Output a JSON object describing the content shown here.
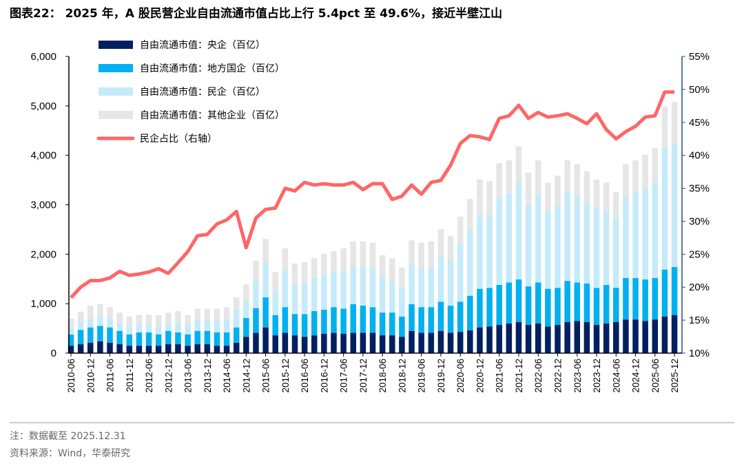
{
  "title": "图表22：  2025 年，A 股民营企业自由流通市值占比上行 5.4pct 至 49.6%，接近半壁江山",
  "footnote": "注：数据截至 2025.12.31",
  "source": "资料来源：Wind，华泰研究",
  "chart_data": {
    "type": "bar",
    "subtype": "stacked bar + line (secondary axis)",
    "categories": [
      "2010-06",
      "2010-09",
      "2010-12",
      "2011-03",
      "2011-06",
      "2011-09",
      "2011-12",
      "2012-03",
      "2012-06",
      "2012-09",
      "2012-12",
      "2013-03",
      "2013-06",
      "2013-09",
      "2013-12",
      "2014-03",
      "2014-06",
      "2014-09",
      "2014-12",
      "2015-03",
      "2015-06",
      "2015-09",
      "2015-12",
      "2016-03",
      "2016-06",
      "2016-09",
      "2016-12",
      "2017-03",
      "2017-06",
      "2017-09",
      "2017-12",
      "2018-03",
      "2018-06",
      "2018-09",
      "2018-12",
      "2019-03",
      "2019-06",
      "2019-09",
      "2019-12",
      "2020-03",
      "2020-06",
      "2020-09",
      "2020-12",
      "2021-03",
      "2021-06",
      "2021-09",
      "2021-12",
      "2022-03",
      "2022-06",
      "2022-09",
      "2022-12",
      "2023-03",
      "2023-06",
      "2023-09",
      "2023-12",
      "2024-03",
      "2024-06",
      "2024-09",
      "2024-12",
      "2025-03",
      "2025-06",
      "2025-09",
      "2025-12"
    ],
    "x_tick_labels": [
      "2010-06",
      "2010-12",
      "2011-06",
      "2011-12",
      "2012-06",
      "2012-12",
      "2013-06",
      "2013-12",
      "2014-06",
      "2014-12",
      "2015-06",
      "2015-12",
      "2016-06",
      "2016-12",
      "2017-06",
      "2017-12",
      "2018-06",
      "2018-12",
      "2019-06",
      "2019-12",
      "2020-06",
      "2020-12",
      "2021-06",
      "2021-12",
      "2022-06",
      "2022-12",
      "2023-06",
      "2023-12",
      "2024-06",
      "2024-12",
      "2025-06",
      "2025-12"
    ],
    "y_left": {
      "range": [
        0,
        6000
      ],
      "ticks": [
        "0",
        "1,000",
        "2,000",
        "3,000",
        "4,000",
        "5,000",
        "6,000"
      ]
    },
    "y_right": {
      "range": [
        10,
        55
      ],
      "unit": "%",
      "ticks": [
        "10%",
        "15%",
        "20%",
        "25%",
        "30%",
        "35%",
        "40%",
        "45%",
        "50%",
        "55%"
      ]
    },
    "grid": false,
    "legend_position": "top-left",
    "series": [
      {
        "name": "自由流通市值：央企（百亿）",
        "type": "bar",
        "axis": "left",
        "color": "#002060",
        "values": [
          150,
          180,
          210,
          240,
          210,
          180,
          150,
          150,
          150,
          150,
          180,
          180,
          150,
          180,
          180,
          150,
          150,
          210,
          330,
          410,
          520,
          360,
          410,
          360,
          330,
          360,
          390,
          410,
          390,
          410,
          410,
          410,
          360,
          360,
          330,
          450,
          410,
          410,
          450,
          410,
          430,
          460,
          520,
          540,
          570,
          600,
          630,
          570,
          600,
          540,
          570,
          630,
          650,
          630,
          570,
          600,
          630,
          680,
          680,
          650,
          680,
          740,
          770
        ]
      },
      {
        "name": "自由流通市值：地方国企（百亿）",
        "type": "bar",
        "axis": "left",
        "color": "#00B0F0",
        "values": [
          225,
          290,
          310,
          310,
          310,
          270,
          230,
          270,
          270,
          230,
          270,
          240,
          230,
          270,
          270,
          270,
          270,
          310,
          380,
          500,
          610,
          410,
          520,
          430,
          460,
          490,
          490,
          520,
          510,
          580,
          550,
          520,
          460,
          460,
          410,
          540,
          520,
          520,
          590,
          550,
          610,
          700,
          780,
          780,
          810,
          830,
          860,
          780,
          830,
          760,
          750,
          830,
          780,
          780,
          750,
          780,
          690,
          840,
          840,
          840,
          840,
          950,
          970
        ]
      },
      {
        "name": "自由流通市值：民企（百亿）",
        "type": "bar",
        "axis": "left",
        "color": "#C5EBFA",
        "values": [
          155,
          160,
          190,
          220,
          190,
          150,
          160,
          150,
          150,
          160,
          150,
          210,
          190,
          230,
          230,
          230,
          260,
          360,
          360,
          550,
          720,
          500,
          750,
          620,
          640,
          670,
          690,
          730,
          760,
          780,
          780,
          780,
          730,
          640,
          580,
          810,
          780,
          810,
          900,
          920,
          1170,
          1330,
          1500,
          1480,
          1750,
          1790,
          1980,
          1670,
          1790,
          1560,
          1670,
          1810,
          1730,
          1640,
          1620,
          1500,
          1400,
          1640,
          1730,
          1840,
          1920,
          2470,
          2510
        ]
      },
      {
        "name": "自由流通市值：其他企业（百亿）",
        "type": "bar",
        "axis": "left",
        "color": "#E6E6E6",
        "values": [
          170,
          210,
          250,
          220,
          220,
          220,
          200,
          200,
          210,
          230,
          220,
          220,
          200,
          220,
          220,
          250,
          250,
          250,
          320,
          410,
          460,
          370,
          440,
          400,
          410,
          400,
          440,
          400,
          460,
          490,
          520,
          520,
          430,
          460,
          410,
          480,
          520,
          520,
          570,
          490,
          550,
          630,
          710,
          680,
          710,
          680,
          710,
          630,
          680,
          590,
          600,
          630,
          660,
          630,
          570,
          570,
          540,
          660,
          650,
          680,
          710,
          830,
          830
        ]
      },
      {
        "name": "民企占比（右轴）",
        "type": "line",
        "axis": "right",
        "color": "#FF6666",
        "unit": "%",
        "values": [
          18.4,
          20.0,
          21.0,
          21.0,
          21.4,
          22.4,
          21.8,
          22.0,
          22.3,
          22.8,
          22.1,
          23.7,
          25.4,
          27.8,
          28.0,
          29.6,
          30.2,
          31.5,
          26.0,
          30.5,
          31.8,
          32.0,
          35.0,
          34.6,
          35.9,
          35.5,
          35.7,
          35.5,
          35.5,
          35.9,
          34.8,
          35.7,
          35.7,
          33.3,
          33.8,
          35.5,
          34.1,
          35.9,
          36.2,
          38.5,
          41.8,
          43.0,
          42.8,
          42.4,
          45.6,
          46.0,
          47.6,
          45.6,
          46.5,
          45.8,
          46.0,
          46.3,
          45.6,
          44.8,
          46.3,
          43.9,
          42.5,
          43.6,
          44.4,
          45.8,
          46.0,
          49.6,
          49.6
        ]
      }
    ],
    "colors": {
      "right_axis": "#1F4E99",
      "footer_text": "#666666"
    }
  }
}
